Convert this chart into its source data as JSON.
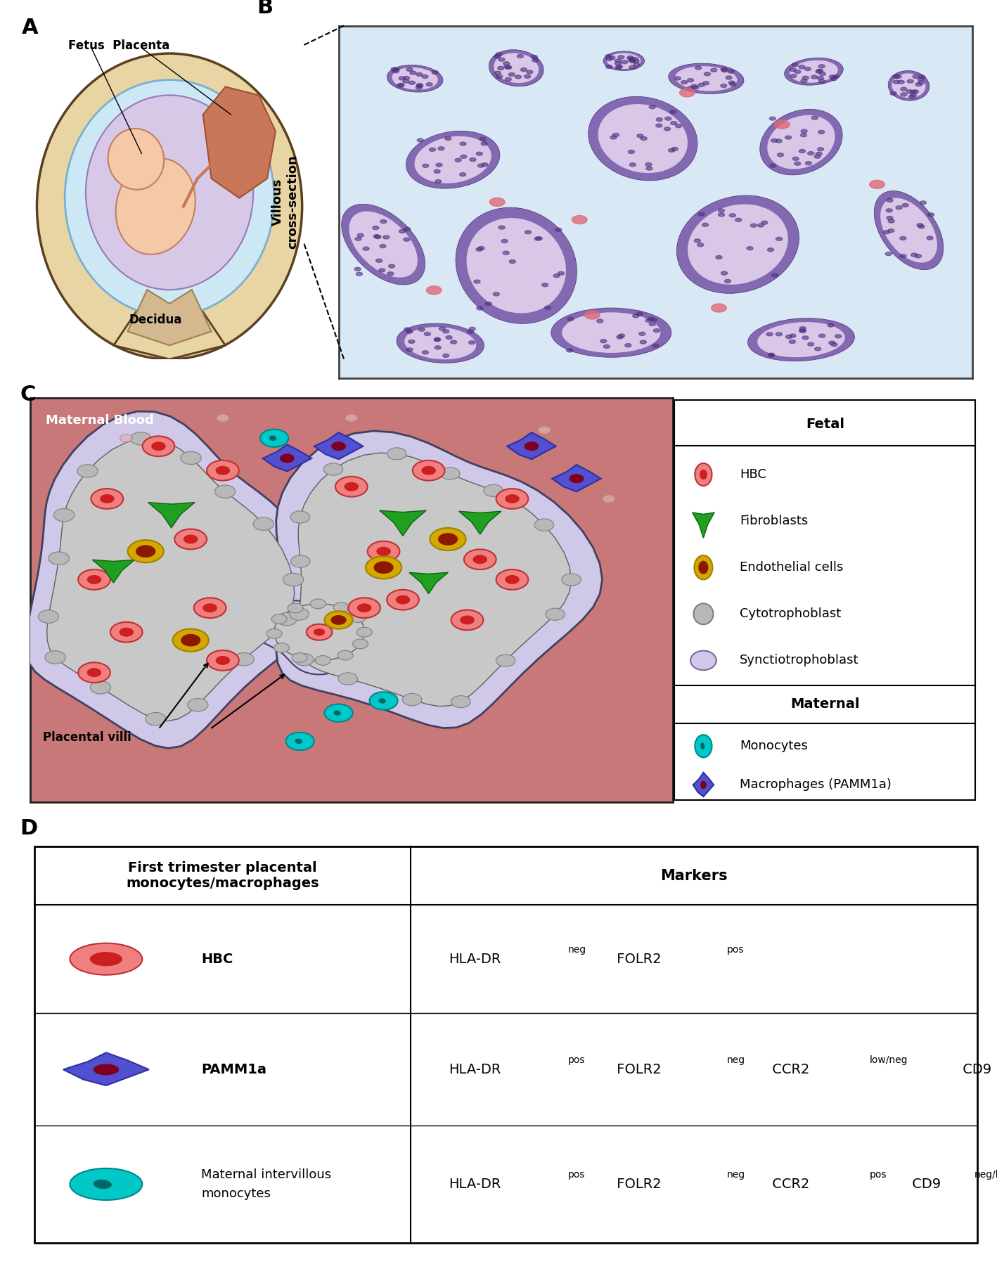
{
  "panel_labels": [
    "A",
    "B",
    "C",
    "D"
  ],
  "panel_label_fontsize": 22,
  "panel_label_weight": "bold",
  "background_color": "#ffffff",
  "panel_A": {
    "label": "A",
    "fetus_placenta_text": "Fetus  Placenta",
    "decidua_text": "Decidua",
    "outer_fill": "#e8d5a3",
    "outer_edge": "#5a4020",
    "amniotic_fill": "#cce8f5",
    "amniotic_edge": "#7ab0d0",
    "innermost_fill": "#d8c8e8",
    "innermost_edge": "#9878b8",
    "fetus_fill": "#f5c8a8",
    "fetus_edge": "#c08060",
    "placenta_fill": "#c87858",
    "placenta_edge": "#a05030",
    "bottom_fill": "#e8d5a3",
    "bottom_edge": "#5a4020"
  },
  "panel_B": {
    "label": "B",
    "axis_label": "Villous\ncross-section",
    "bg_color": "#d8e8f5",
    "villous_outer": "#7858a8",
    "villous_inner": "#e8d8f0",
    "nuclei_color": "#503080",
    "pink_cell_color": "#e06878",
    "border_color": "#404040"
  },
  "panel_C": {
    "label": "C",
    "maternal_blood_color": "#c87878",
    "maternal_blood_label": "Maternal Blood",
    "placental_villi_label": "Placental villi",
    "syncytio_fill": "#d0c8e8",
    "syncytio_edge": "#404060",
    "villi_fill": "#c8c8c8",
    "villi_edge": "#606060",
    "cyto_fill": "#b8b8b8",
    "cyto_edge": "#808080",
    "hbc_outer": "#f08080",
    "hbc_edge": "#c03030",
    "hbc_inner": "#cc2020",
    "fibroblast_fill": "#20a020",
    "fibroblast_edge": "#106010",
    "endo_outer": "#d4a800",
    "endo_edge": "#a08000",
    "endo_inner": "#8b1800",
    "monocyte_outer": "#00c8c8",
    "monocyte_edge": "#008888",
    "monocyte_inner": "#006868",
    "macro_fill": "#5050d0",
    "macro_edge": "#3030a0",
    "macro_inner": "#800020",
    "legend_title_fetal": "Fetal",
    "legend_title_maternal": "Maternal",
    "cyto_legend_fill": "#b8b8b8",
    "cyto_legend_edge": "#808080",
    "sync_legend_fill": "#d0c8e8",
    "sync_legend_edge": "#806898"
  },
  "panel_D": {
    "label": "D",
    "col1_header": "First trimester placental\nmonocytes/macrophages",
    "col2_header": "Markers",
    "border_color": "#000000"
  }
}
